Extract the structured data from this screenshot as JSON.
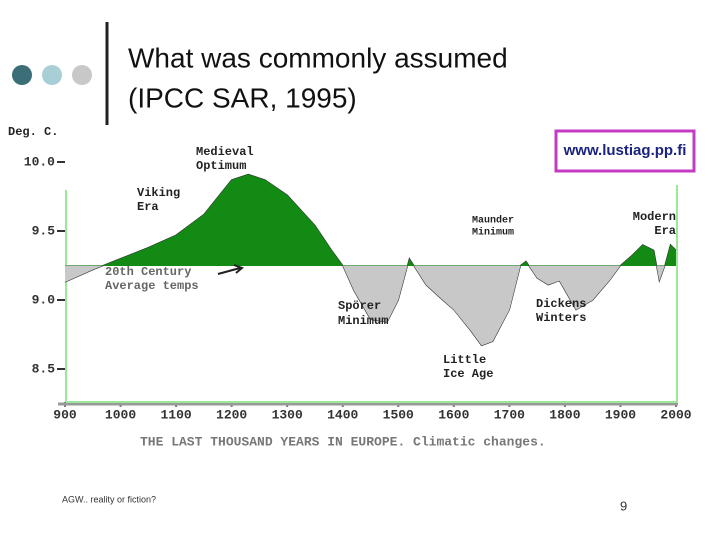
{
  "slide": {
    "title": [
      "What was commonly assumed",
      "(IPCC SAR, 1995)"
    ],
    "footer": "AGW..  reality or fiction?",
    "page_number": "9"
  },
  "chart_data": {
    "type": "area",
    "y_label": "Deg. C.",
    "caption": "THE LAST THOUSAND YEARS IN EUROPE. Climatic changes.",
    "watermark": "www.lustiag.pp.fi",
    "annotations": [
      [
        "Viking",
        "Era"
      ],
      [
        "Medieval",
        "Optimum"
      ],
      [
        "20th Century",
        "Average temps"
      ],
      [
        "Spörer",
        "Minimum"
      ],
      [
        "Little",
        "Ice Age"
      ],
      [
        "Maunder",
        "Minimum"
      ],
      [
        "Dickens",
        "Winters"
      ],
      [
        "Modern",
        "Era"
      ]
    ],
    "reference": 9.25,
    "x": [
      900,
      950,
      1000,
      1050,
      1100,
      1150,
      1200,
      1230,
      1260,
      1300,
      1350,
      1380,
      1400,
      1420,
      1450,
      1480,
      1500,
      1520,
      1550,
      1580,
      1600,
      1630,
      1650,
      1670,
      1700,
      1720,
      1730,
      1750,
      1770,
      1790,
      1800,
      1820,
      1850,
      1880,
      1900,
      1920,
      1940,
      1960,
      1970,
      1980,
      1990,
      2000
    ],
    "values": [
      9.13,
      9.22,
      9.3,
      9.38,
      9.47,
      9.62,
      9.87,
      9.91,
      9.87,
      9.76,
      9.54,
      9.36,
      9.25,
      9.07,
      8.86,
      8.84,
      9.0,
      9.3,
      9.11,
      9.0,
      8.93,
      8.78,
      8.67,
      8.7,
      8.93,
      9.25,
      9.28,
      9.16,
      9.11,
      9.14,
      9.07,
      8.93,
      9.0,
      9.14,
      9.25,
      9.32,
      9.4,
      9.36,
      9.14,
      9.25,
      9.4,
      9.36
    ],
    "colors": {
      "above": "#138a13",
      "below": "#c8c8c8"
    },
    "xlim": [
      900,
      2000
    ],
    "ylim": [
      8.25,
      10.25
    ],
    "xticks": [
      900,
      1000,
      1100,
      1200,
      1300,
      1400,
      1500,
      1600,
      1700,
      1800,
      1900,
      2000
    ],
    "yticks": [
      8.5,
      {
        "value": 9,
        "label": "9.0"
      },
      9.5,
      {
        "value": 10,
        "label": "10.0"
      }
    ]
  }
}
